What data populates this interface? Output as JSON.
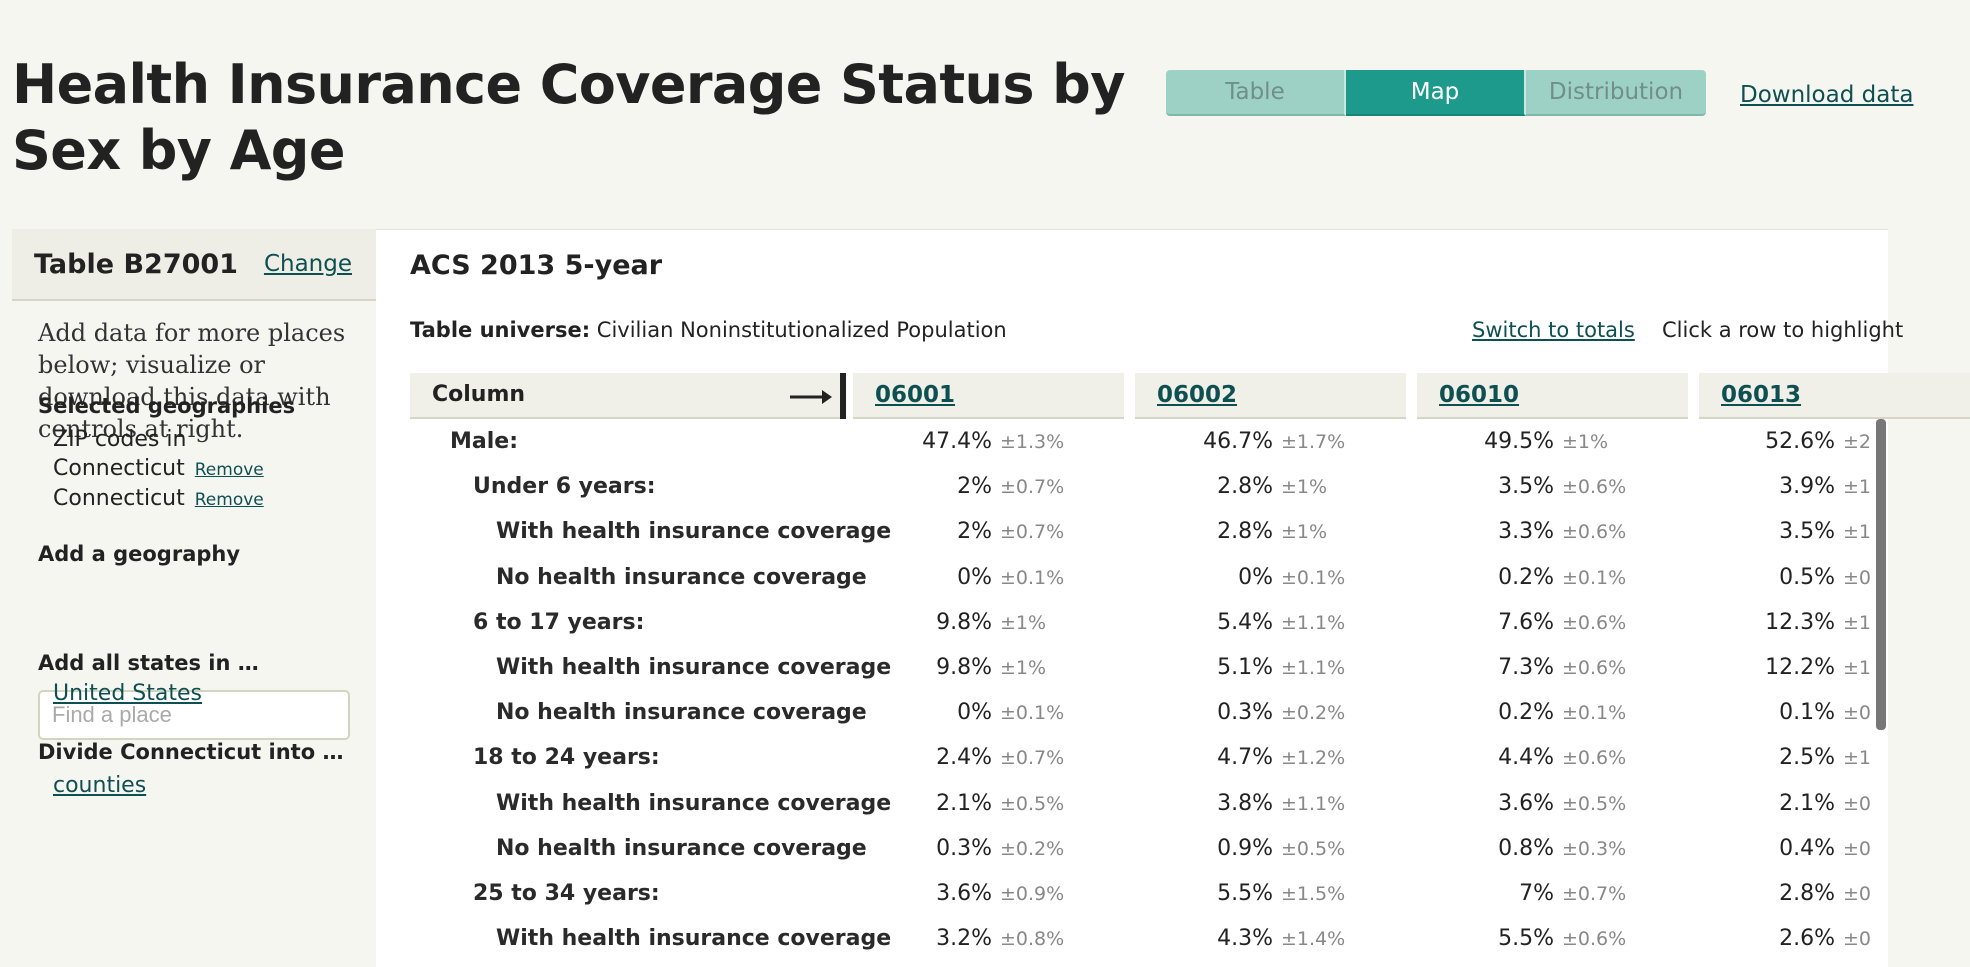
{
  "page": {
    "title": "Health Insurance Coverage Status by Sex by Age",
    "tabs": [
      {
        "label": "Table",
        "active": false
      },
      {
        "label": "Map",
        "active": true
      },
      {
        "label": "Distribution",
        "active": false
      }
    ],
    "download_label": "Download data"
  },
  "sidebar": {
    "table_name": "Table B27001",
    "change_label": "Change",
    "description": "Add data for more places below; visualize or download this data with controls at right.",
    "selected_label": "Selected geographies",
    "selected": [
      {
        "name": "ZIP codes in Connecticut",
        "remove": "Remove"
      },
      {
        "name": "Connecticut",
        "remove": "Remove"
      }
    ],
    "add_label": "Add a geography",
    "search_placeholder": "Find a place",
    "add_all_label": "Add all states in …",
    "add_all_link": "United States",
    "divide_label": "Divide Connecticut into …",
    "divide_link": "counties"
  },
  "main": {
    "release": "ACS 2013 5-year",
    "universe_label": "Table universe:",
    "universe_value": "Civilian Noninstitutionalized Population",
    "switch_label": "Switch to totals",
    "hint": "Click a row to highlight",
    "column_header": "Column",
    "arrow_icon": "right-arrow-icon",
    "geographies": [
      "06001",
      "06002",
      "06010",
      "06013"
    ],
    "rows": [
      {
        "label": "Male:",
        "indent": 0,
        "cells": [
          [
            "47.4%",
            "±1.3%"
          ],
          [
            "46.7%",
            "±1.7%"
          ],
          [
            "49.5%",
            "±1%"
          ],
          [
            "52.6%",
            "±2"
          ]
        ]
      },
      {
        "label": "Under 6 years:",
        "indent": 1,
        "cells": [
          [
            "2%",
            "±0.7%"
          ],
          [
            "2.8%",
            "±1%"
          ],
          [
            "3.5%",
            "±0.6%"
          ],
          [
            "3.9%",
            "±1"
          ]
        ]
      },
      {
        "label": "With health insurance coverage",
        "indent": 2,
        "cells": [
          [
            "2%",
            "±0.7%"
          ],
          [
            "2.8%",
            "±1%"
          ],
          [
            "3.3%",
            "±0.6%"
          ],
          [
            "3.5%",
            "±1"
          ]
        ]
      },
      {
        "label": "No health insurance coverage",
        "indent": 2,
        "cells": [
          [
            "0%",
            "±0.1%"
          ],
          [
            "0%",
            "±0.1%"
          ],
          [
            "0.2%",
            "±0.1%"
          ],
          [
            "0.5%",
            "±0"
          ]
        ]
      },
      {
        "label": "6 to 17 years:",
        "indent": 1,
        "cells": [
          [
            "9.8%",
            "±1%"
          ],
          [
            "5.4%",
            "±1.1%"
          ],
          [
            "7.6%",
            "±0.6%"
          ],
          [
            "12.3%",
            "±1"
          ]
        ]
      },
      {
        "label": "With health insurance coverage",
        "indent": 2,
        "cells": [
          [
            "9.8%",
            "±1%"
          ],
          [
            "5.1%",
            "±1.1%"
          ],
          [
            "7.3%",
            "±0.6%"
          ],
          [
            "12.2%",
            "±1"
          ]
        ]
      },
      {
        "label": "No health insurance coverage",
        "indent": 2,
        "cells": [
          [
            "0%",
            "±0.1%"
          ],
          [
            "0.3%",
            "±0.2%"
          ],
          [
            "0.2%",
            "±0.1%"
          ],
          [
            "0.1%",
            "±0"
          ]
        ]
      },
      {
        "label": "18 to 24 years:",
        "indent": 1,
        "cells": [
          [
            "2.4%",
            "±0.7%"
          ],
          [
            "4.7%",
            "±1.2%"
          ],
          [
            "4.4%",
            "±0.6%"
          ],
          [
            "2.5%",
            "±1"
          ]
        ]
      },
      {
        "label": "With health insurance coverage",
        "indent": 2,
        "cells": [
          [
            "2.1%",
            "±0.5%"
          ],
          [
            "3.8%",
            "±1.1%"
          ],
          [
            "3.6%",
            "±0.5%"
          ],
          [
            "2.1%",
            "±0"
          ]
        ]
      },
      {
        "label": "No health insurance coverage",
        "indent": 2,
        "cells": [
          [
            "0.3%",
            "±0.2%"
          ],
          [
            "0.9%",
            "±0.5%"
          ],
          [
            "0.8%",
            "±0.3%"
          ],
          [
            "0.4%",
            "±0"
          ]
        ]
      },
      {
        "label": "25 to 34 years:",
        "indent": 1,
        "cells": [
          [
            "3.6%",
            "±0.9%"
          ],
          [
            "5.5%",
            "±1.5%"
          ],
          [
            "7%",
            "±0.7%"
          ],
          [
            "2.8%",
            "±0"
          ]
        ]
      },
      {
        "label": "With health insurance coverage",
        "indent": 2,
        "cells": [
          [
            "3.2%",
            "±0.8%"
          ],
          [
            "4.3%",
            "±1.4%"
          ],
          [
            "5.5%",
            "±0.6%"
          ],
          [
            "2.6%",
            "±0"
          ]
        ]
      }
    ]
  }
}
